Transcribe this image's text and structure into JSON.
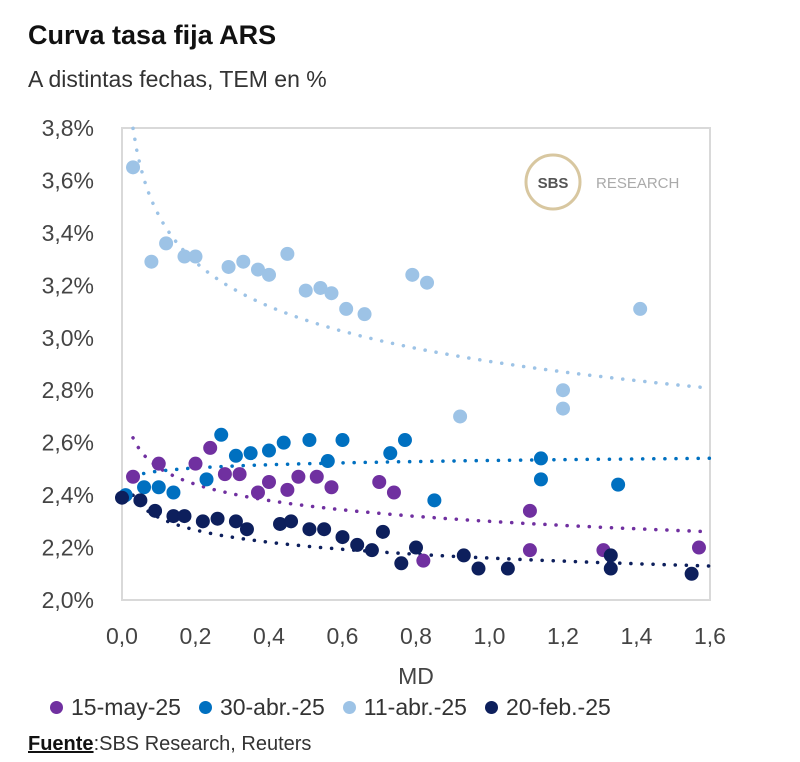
{
  "title": "Curva tasa fija ARS",
  "subtitle": "A distintas fechas, TEM en %",
  "source_label": "Fuente",
  "source_text": ":SBS Research, Reuters",
  "logo": {
    "mark": "SBS",
    "text": "RESEARCH"
  },
  "chart_data": {
    "type": "scatter",
    "title": "Curva tasa fija ARS",
    "subtitle": "A distintas fechas, TEM en %",
    "xlabel": "MD",
    "ylabel": "",
    "xlim": [
      0,
      1.6
    ],
    "ylim": [
      2.0,
      3.8
    ],
    "xticks": [
      "0,0",
      "0,2",
      "0,4",
      "0,6",
      "0,8",
      "1,0",
      "1,2",
      "1,4",
      "1,6"
    ],
    "yticks": [
      "2,0%",
      "2,2%",
      "2,4%",
      "2,6%",
      "2,8%",
      "3,0%",
      "3,2%",
      "3,4%",
      "3,6%",
      "3,8%"
    ],
    "grid": false,
    "legend_position": "bottom",
    "trendline": "power, dotted",
    "series": [
      {
        "name": "15-may-25",
        "color": "#7030a0",
        "trend": {
          "a": 2.3,
          "b": -0.037
        },
        "points": [
          [
            0.03,
            2.47
          ],
          [
            0.1,
            2.52
          ],
          [
            0.2,
            2.52
          ],
          [
            0.24,
            2.58
          ],
          [
            0.28,
            2.48
          ],
          [
            0.32,
            2.48
          ],
          [
            0.37,
            2.41
          ],
          [
            0.4,
            2.45
          ],
          [
            0.45,
            2.42
          ],
          [
            0.48,
            2.47
          ],
          [
            0.53,
            2.47
          ],
          [
            0.57,
            2.43
          ],
          [
            0.7,
            2.45
          ],
          [
            0.74,
            2.41
          ],
          [
            0.82,
            2.15
          ],
          [
            1.11,
            2.34
          ],
          [
            1.11,
            2.19
          ],
          [
            1.31,
            2.19
          ],
          [
            1.57,
            2.2
          ]
        ]
      },
      {
        "name": "30-abr.-25",
        "color": "#0070c0",
        "trend": {
          "a": 2.532,
          "b": 0.007
        },
        "points": [
          [
            0.01,
            2.4
          ],
          [
            0.06,
            2.43
          ],
          [
            0.1,
            2.43
          ],
          [
            0.14,
            2.41
          ],
          [
            0.23,
            2.46
          ],
          [
            0.27,
            2.63
          ],
          [
            0.31,
            2.55
          ],
          [
            0.35,
            2.56
          ],
          [
            0.4,
            2.57
          ],
          [
            0.44,
            2.6
          ],
          [
            0.51,
            2.61
          ],
          [
            0.56,
            2.53
          ],
          [
            0.6,
            2.61
          ],
          [
            0.73,
            2.56
          ],
          [
            0.77,
            2.61
          ],
          [
            0.85,
            2.38
          ],
          [
            1.14,
            2.54
          ],
          [
            1.14,
            2.46
          ],
          [
            1.35,
            2.44
          ]
        ]
      },
      {
        "name": "11-abr.-25",
        "color": "#9dc3e6",
        "trend": {
          "a": 2.91,
          "b": -0.076
        },
        "points": [
          [
            0.03,
            3.65
          ],
          [
            0.08,
            3.29
          ],
          [
            0.12,
            3.36
          ],
          [
            0.17,
            3.31
          ],
          [
            0.2,
            3.31
          ],
          [
            0.29,
            3.27
          ],
          [
            0.33,
            3.29
          ],
          [
            0.37,
            3.26
          ],
          [
            0.4,
            3.24
          ],
          [
            0.45,
            3.32
          ],
          [
            0.5,
            3.18
          ],
          [
            0.54,
            3.19
          ],
          [
            0.57,
            3.17
          ],
          [
            0.61,
            3.11
          ],
          [
            0.66,
            3.09
          ],
          [
            0.79,
            3.24
          ],
          [
            0.83,
            3.21
          ],
          [
            0.92,
            2.7
          ],
          [
            1.2,
            2.8
          ],
          [
            1.2,
            2.73
          ],
          [
            1.41,
            3.11
          ]
        ]
      },
      {
        "name": "20-feb.-25",
        "color": "#0d1f5c",
        "trend": {
          "a": 2.16,
          "b": -0.03
        },
        "points": [
          [
            0.0,
            2.39
          ],
          [
            0.05,
            2.38
          ],
          [
            0.09,
            2.34
          ],
          [
            0.14,
            2.32
          ],
          [
            0.17,
            2.32
          ],
          [
            0.22,
            2.3
          ],
          [
            0.26,
            2.31
          ],
          [
            0.31,
            2.3
          ],
          [
            0.34,
            2.27
          ],
          [
            0.43,
            2.29
          ],
          [
            0.46,
            2.3
          ],
          [
            0.51,
            2.27
          ],
          [
            0.55,
            2.27
          ],
          [
            0.6,
            2.24
          ],
          [
            0.64,
            2.21
          ],
          [
            0.68,
            2.19
          ],
          [
            0.71,
            2.26
          ],
          [
            0.76,
            2.14
          ],
          [
            0.8,
            2.2
          ],
          [
            0.93,
            2.17
          ],
          [
            0.97,
            2.12
          ],
          [
            1.05,
            2.12
          ],
          [
            1.33,
            2.17
          ],
          [
            1.33,
            2.12
          ],
          [
            1.55,
            2.1
          ]
        ]
      }
    ]
  }
}
